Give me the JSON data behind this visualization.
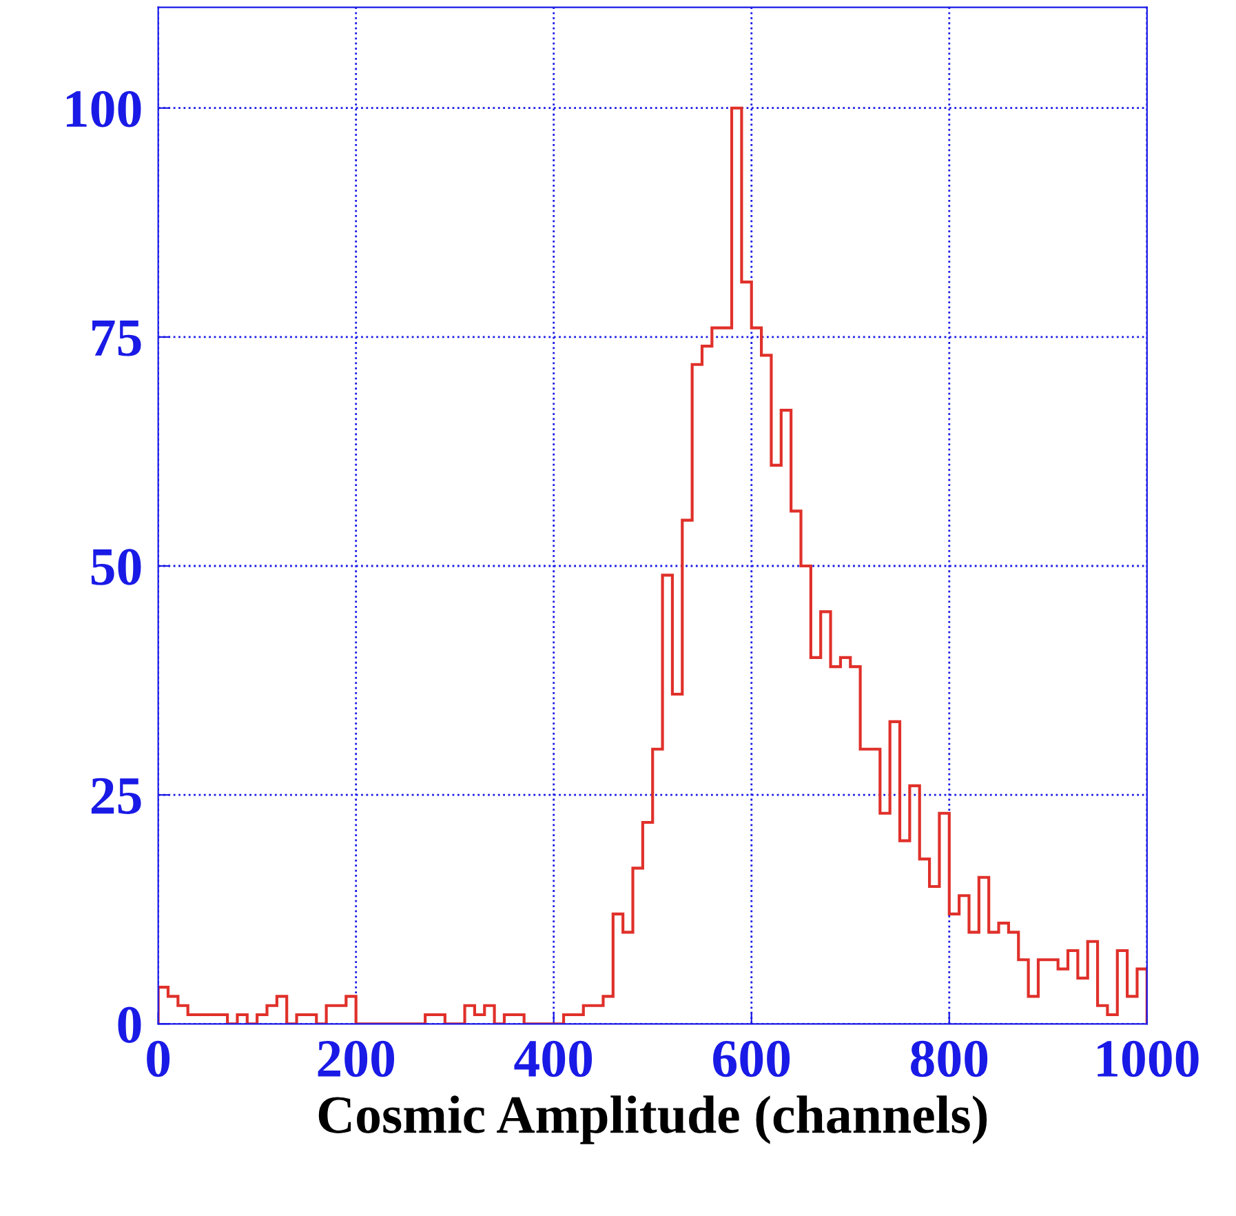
{
  "chart_data": {
    "type": "histogram",
    "xlabel": "Cosmic Amplitude (channels)",
    "bins": [
      0,
      10,
      20,
      30,
      40,
      50,
      60,
      70,
      80,
      90,
      100,
      110,
      120,
      130,
      140,
      150,
      160,
      170,
      180,
      190,
      200,
      210,
      220,
      230,
      240,
      250,
      260,
      270,
      280,
      290,
      300,
      310,
      320,
      330,
      340,
      350,
      360,
      370,
      380,
      390,
      400,
      410,
      420,
      430,
      440,
      450,
      460,
      470,
      480,
      490,
      500,
      510,
      520,
      530,
      540,
      550,
      560,
      570,
      580,
      590,
      600,
      610,
      620,
      630,
      640,
      650,
      660,
      670,
      680,
      690,
      700,
      710,
      720,
      730,
      740,
      750,
      760,
      770,
      780,
      790,
      800,
      810,
      820,
      830,
      840,
      850,
      860,
      870,
      880,
      890,
      900,
      910,
      920,
      930,
      940,
      950,
      960,
      970,
      980,
      990,
      1000
    ],
    "values": [
      4,
      3,
      2,
      1,
      1,
      1,
      1,
      0,
      1,
      0,
      1,
      2,
      3,
      0,
      1,
      1,
      0,
      2,
      2,
      3,
      0,
      0,
      0,
      0,
      0,
      0,
      0,
      1,
      1,
      0,
      0,
      2,
      1,
      2,
      0,
      1,
      1,
      0,
      0,
      0,
      0,
      1,
      1,
      2,
      2,
      3,
      12,
      10,
      17,
      22,
      30,
      49,
      36,
      55,
      72,
      74,
      76,
      76,
      100,
      81,
      76,
      73,
      61,
      67,
      56,
      50,
      40,
      45,
      39,
      40,
      39,
      30,
      30,
      23,
      33,
      20,
      26,
      18,
      15,
      23,
      12,
      14,
      10,
      16,
      10,
      11,
      10,
      7,
      3,
      7,
      7,
      6,
      8,
      5,
      9,
      2,
      1,
      8,
      3,
      6
    ],
    "color": "#e0302a",
    "xlim": [
      0,
      1000
    ],
    "xticks": [
      0,
      200,
      400,
      600,
      800,
      1000
    ],
    "ylim": [
      0,
      111
    ],
    "yticks": [
      0,
      25,
      50,
      75,
      100
    ],
    "grid": true
  }
}
